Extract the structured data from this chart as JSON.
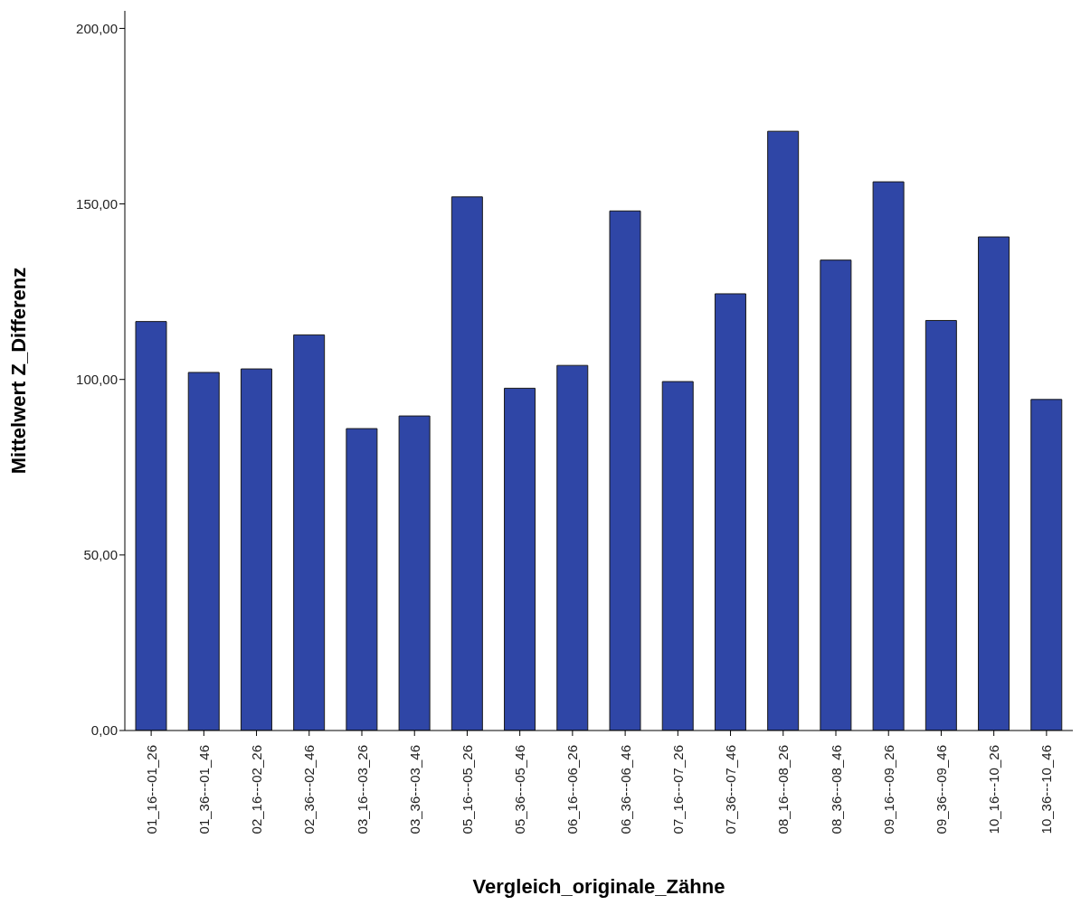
{
  "chart_data": {
    "type": "bar",
    "xlabel": "Vergleich_originale_Zähne",
    "ylabel": "Mittelwert Z_Differenz",
    "categories": [
      "01_16---01_26",
      "01_36---01_46",
      "02_16---02_26",
      "02_36---02_46",
      "03_16---03_26",
      "03_36---03_46",
      "05_16---05_26",
      "05_36---05_46",
      "06_16---06_26",
      "06_36---06_46",
      "07_16---07_26",
      "07_36---07_46",
      "08_16---08_26",
      "08_36---08_46",
      "09_16---09_26",
      "09_36---09_46",
      "10_16---10_26",
      "10_36---10_46"
    ],
    "values": [
      116.5,
      102,
      103,
      112.7,
      86,
      89.6,
      152,
      97.5,
      104,
      148,
      99.4,
      124.4,
      170.7,
      134,
      156.3,
      116.8,
      140.6,
      94.3
    ],
    "color": "#2f46a6",
    "ylim": [
      0,
      205
    ],
    "yticks": [
      {
        "value": 0,
        "label": "0,00"
      },
      {
        "value": 50,
        "label": "50,00"
      },
      {
        "value": 100,
        "label": "100,00"
      },
      {
        "value": 150,
        "label": "150,00"
      },
      {
        "value": 200,
        "label": "200,00"
      }
    ],
    "grid": false
  }
}
